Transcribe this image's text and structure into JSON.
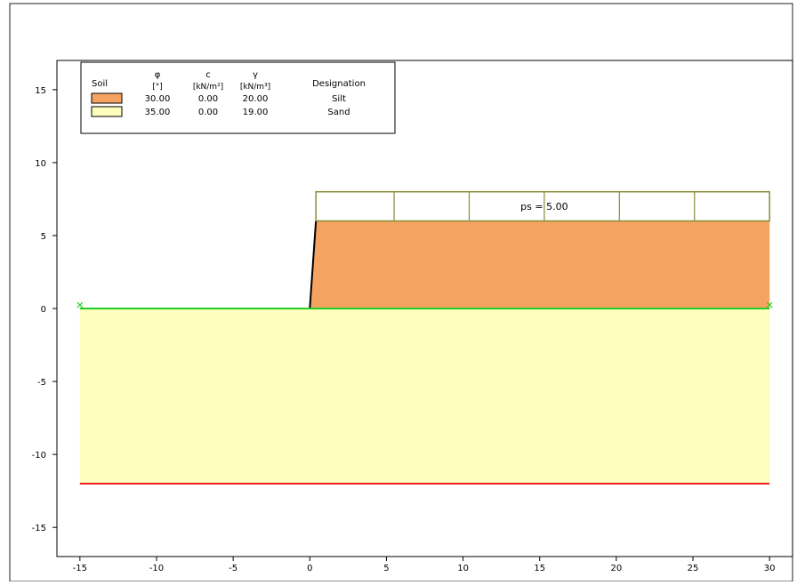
{
  "chart_data": {
    "type": "cross-section",
    "title": "",
    "xlabel": "",
    "ylabel": "",
    "xlim": [
      -16.5,
      31.5
    ],
    "ylim": [
      -17,
      17
    ],
    "x_ticks": [
      -15,
      -10,
      -5,
      0,
      5,
      10,
      15,
      20,
      25,
      30
    ],
    "y_ticks": [
      15,
      10,
      5,
      0,
      -5,
      -10,
      -15
    ],
    "x_tick_labels": [
      "-15",
      "-10",
      "-5",
      "0",
      "5",
      "10",
      "15",
      "20",
      "25",
      "30"
    ],
    "y_tick_labels": [
      "15",
      "10",
      "5",
      "0",
      "-5",
      "-10",
      "-15"
    ],
    "legend": {
      "position": "top-left",
      "header": {
        "soil": "Soil",
        "phi": "φ",
        "phi_unit": "[°]",
        "c": "c",
        "c_unit": "[kN/m²]",
        "gamma": "γ",
        "gamma_unit": "[kN/m³]",
        "designation": "Designation"
      },
      "rows": [
        {
          "color": "#f4a460",
          "phi": "30.00",
          "c": "0.00",
          "gamma": "20.00",
          "designation": "Silt"
        },
        {
          "color": "#fdfdbe",
          "phi": "35.00",
          "c": "0.00",
          "gamma": "19.00",
          "designation": "Sand"
        }
      ]
    },
    "soil_regions": [
      {
        "name": "Silt",
        "color": "#f4a460",
        "polygon": [
          [
            0,
            0
          ],
          [
            0.4,
            6
          ],
          [
            30,
            6
          ],
          [
            30,
            0
          ]
        ]
      },
      {
        "name": "Sand",
        "color": "#fdfdbe",
        "polygon": [
          [
            -15,
            0
          ],
          [
            30,
            0
          ],
          [
            30,
            -12
          ],
          [
            -15,
            -12
          ]
        ]
      }
    ],
    "wall_line": [
      [
        0,
        0
      ],
      [
        0.4,
        6
      ]
    ],
    "ground_line": {
      "color": "#22cc22",
      "points": [
        [
          -15,
          0
        ],
        [
          30,
          0
        ]
      ]
    },
    "bottom_line": {
      "color": "#ee2222",
      "points": [
        [
          -15,
          -12
        ],
        [
          30,
          -12
        ]
      ]
    },
    "surcharge": {
      "label": "ps = 5.00",
      "x_range": [
        0.4,
        30
      ],
      "y_range": [
        6,
        8
      ],
      "divisions_x": [
        5.5,
        10.4,
        15.3,
        20.2,
        25.1
      ],
      "color": "#8b8b3a"
    }
  }
}
